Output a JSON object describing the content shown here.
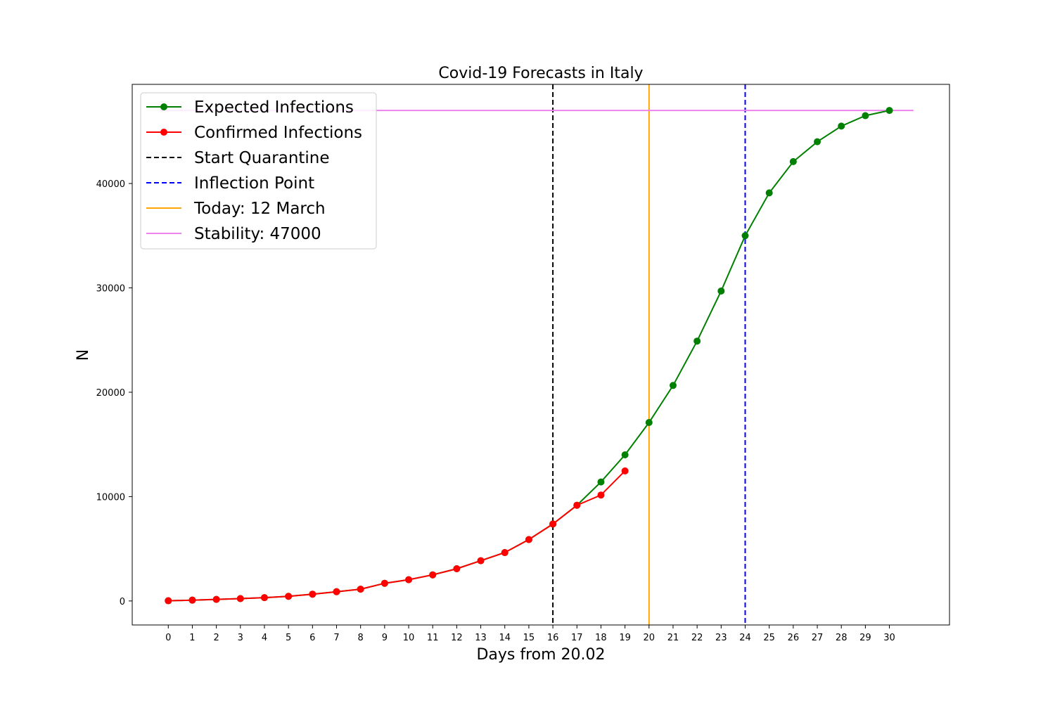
{
  "chart_data": {
    "type": "line",
    "title": "Covid-19 Forecasts in Italy",
    "xlabel": "Days from 20.02",
    "ylabel": "N",
    "xlim": [
      -1.5,
      32.5
    ],
    "ylim": [
      -2300,
      49500
    ],
    "x_ticks": [
      0,
      1,
      2,
      3,
      4,
      5,
      6,
      7,
      8,
      9,
      10,
      11,
      12,
      13,
      14,
      15,
      16,
      17,
      18,
      19,
      20,
      21,
      22,
      23,
      24,
      25,
      26,
      27,
      28,
      29,
      30
    ],
    "y_ticks": [
      0,
      10000,
      20000,
      30000,
      40000
    ],
    "grid": false,
    "legend_position": "top-left",
    "series": [
      {
        "name": "Expected Infections",
        "color": "#008000",
        "marker": "circle",
        "x": [
          0,
          1,
          2,
          3,
          4,
          5,
          6,
          7,
          8,
          9,
          10,
          11,
          12,
          13,
          14,
          15,
          16,
          17,
          18,
          19,
          20,
          21,
          22,
          23,
          24,
          25,
          26,
          27,
          28,
          29,
          30
        ],
        "values": [
          20,
          79,
          150,
          227,
          320,
          445,
          650,
          888,
          1128,
          1694,
          2036,
          2502,
          3089,
          3858,
          4636,
          5883,
          7375,
          9172,
          11400,
          14000,
          17100,
          20650,
          24900,
          29700,
          35000,
          39100,
          42100,
          44000,
          45500,
          46500,
          47000
        ]
      },
      {
        "name": "Confirmed Infections",
        "color": "#ff0000",
        "marker": "circle",
        "x": [
          0,
          1,
          2,
          3,
          4,
          5,
          6,
          7,
          8,
          9,
          10,
          11,
          12,
          13,
          14,
          15,
          16,
          17,
          18,
          19
        ],
        "values": [
          20,
          79,
          150,
          227,
          320,
          445,
          650,
          888,
          1128,
          1694,
          2036,
          2502,
          3089,
          3858,
          4636,
          5883,
          7375,
          9172,
          10149,
          12462
        ]
      }
    ],
    "reference_lines": [
      {
        "name": "Start Quarantine",
        "orientation": "vertical",
        "x": 16,
        "color": "#000000",
        "dashed": true
      },
      {
        "name": "Inflection Point",
        "orientation": "vertical",
        "x": 24,
        "color": "#0000ff",
        "dashed": true
      },
      {
        "name": "Today: 12 March",
        "orientation": "vertical",
        "x": 20,
        "color": "#ffa500",
        "dashed": false
      },
      {
        "name": "Stability: 47000",
        "orientation": "horizontal",
        "y": 47000,
        "x_range": [
          0,
          31
        ],
        "color": "#ee82ee",
        "dashed": false
      }
    ],
    "legend": [
      {
        "label": "Expected Infections",
        "color": "#008000",
        "style": "line-marker"
      },
      {
        "label": "Confirmed Infections",
        "color": "#ff0000",
        "style": "line-marker"
      },
      {
        "label": "Start Quarantine",
        "color": "#000000",
        "style": "dashed"
      },
      {
        "label": "Inflection Point",
        "color": "#0000ff",
        "style": "dashed"
      },
      {
        "label": "Today: 12 March",
        "color": "#ffa500",
        "style": "solid"
      },
      {
        "label": "Stability: 47000",
        "color": "#ee82ee",
        "style": "solid"
      }
    ]
  }
}
